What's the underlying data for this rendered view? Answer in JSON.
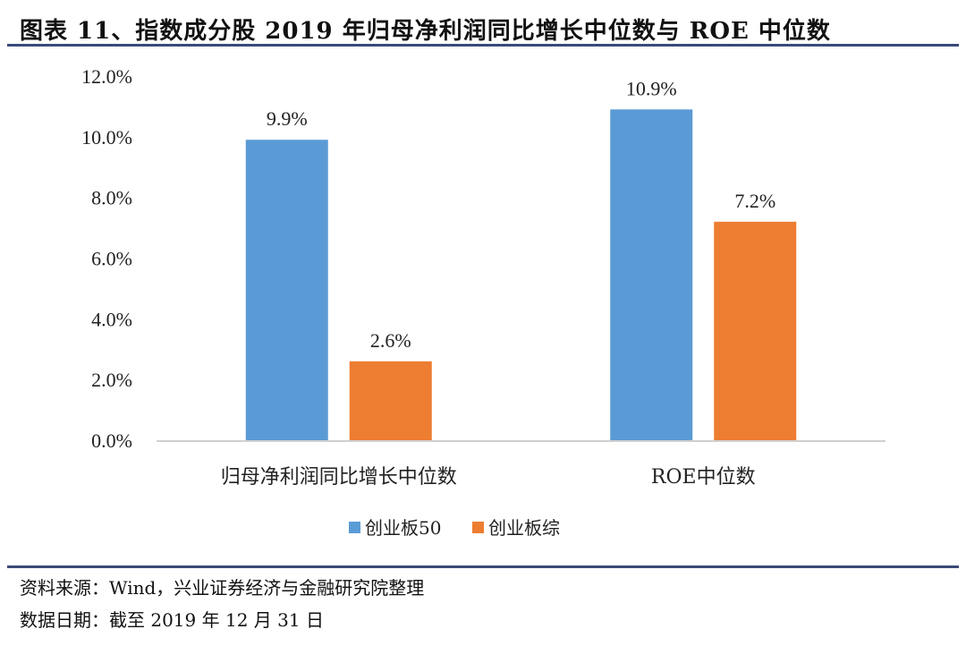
{
  "header": {
    "title": "图表 11、指数成分股 2019 年归母净利润同比增长中位数与 ROE 中位数"
  },
  "footer": {
    "source": "资料来源：Wind，兴业证券经济与金融研究院整理",
    "date": "数据日期：截至 2019 年 12 月 31 日"
  },
  "chart_data": {
    "type": "bar",
    "title": "",
    "xlabel": "",
    "ylabel": "",
    "categories": [
      "归母净利润同比增长中位数",
      "ROE中位数"
    ],
    "series": [
      {
        "name": "创业板50",
        "values": [
          9.9,
          10.9
        ],
        "labels": [
          "9.9%",
          "10.9%"
        ],
        "color": "#5b9bd5"
      },
      {
        "name": "创业板综",
        "values": [
          2.6,
          7.2
        ],
        "labels": [
          "2.6%",
          "7.2%"
        ],
        "color": "#ed7d31"
      }
    ],
    "ylim": [
      0,
      12
    ],
    "yticks": [
      0,
      2,
      4,
      6,
      8,
      10,
      12
    ],
    "ytick_labels": [
      "0.0%",
      "2.0%",
      "4.0%",
      "6.0%",
      "8.0%",
      "10.0%",
      "12.0%"
    ],
    "grid": false,
    "legend_position": "bottom"
  }
}
